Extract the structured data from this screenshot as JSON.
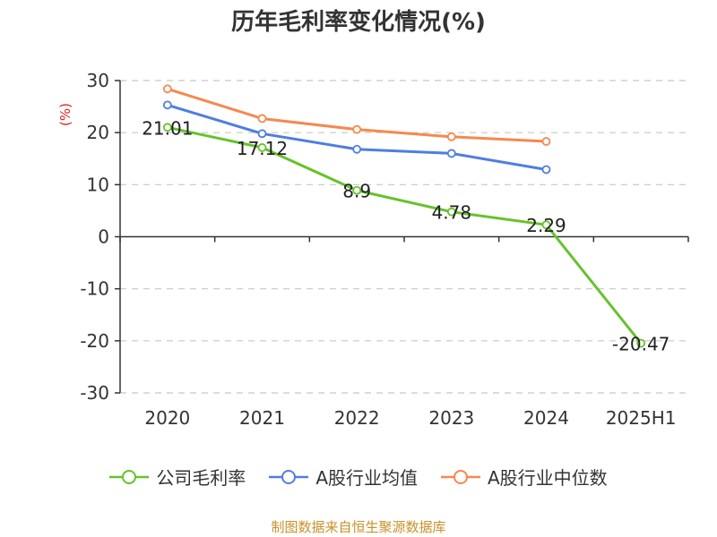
{
  "chart_data": {
    "type": "line",
    "title": "历年毛利率变化情况(%)",
    "ylabel": "(%)",
    "categories": [
      "2020",
      "2021",
      "2022",
      "2023",
      "2024",
      "2025H1"
    ],
    "ylim": [
      -30,
      30
    ],
    "yticks": [
      30,
      20,
      10,
      0,
      -10,
      -20,
      -30
    ],
    "grid": true,
    "legend_position": "bottom",
    "series": [
      {
        "name": "公司毛利率",
        "color": "#66c22b",
        "values": [
          21.01,
          17.12,
          8.9,
          4.78,
          2.29,
          -20.47
        ],
        "labels": [
          "21.01",
          "17.12",
          "8.9",
          "4.78",
          "2.29",
          "-20.47"
        ]
      },
      {
        "name": "A股行业均值",
        "color": "#4f7ee0",
        "values": [
          25.3,
          19.8,
          16.8,
          16.0,
          12.9,
          null
        ]
      },
      {
        "name": "A股行业中位数",
        "color": "#f5894f",
        "values": [
          28.4,
          22.7,
          20.6,
          19.2,
          18.3,
          null
        ]
      }
    ]
  },
  "source": "制图数据来自恒生聚源数据库"
}
